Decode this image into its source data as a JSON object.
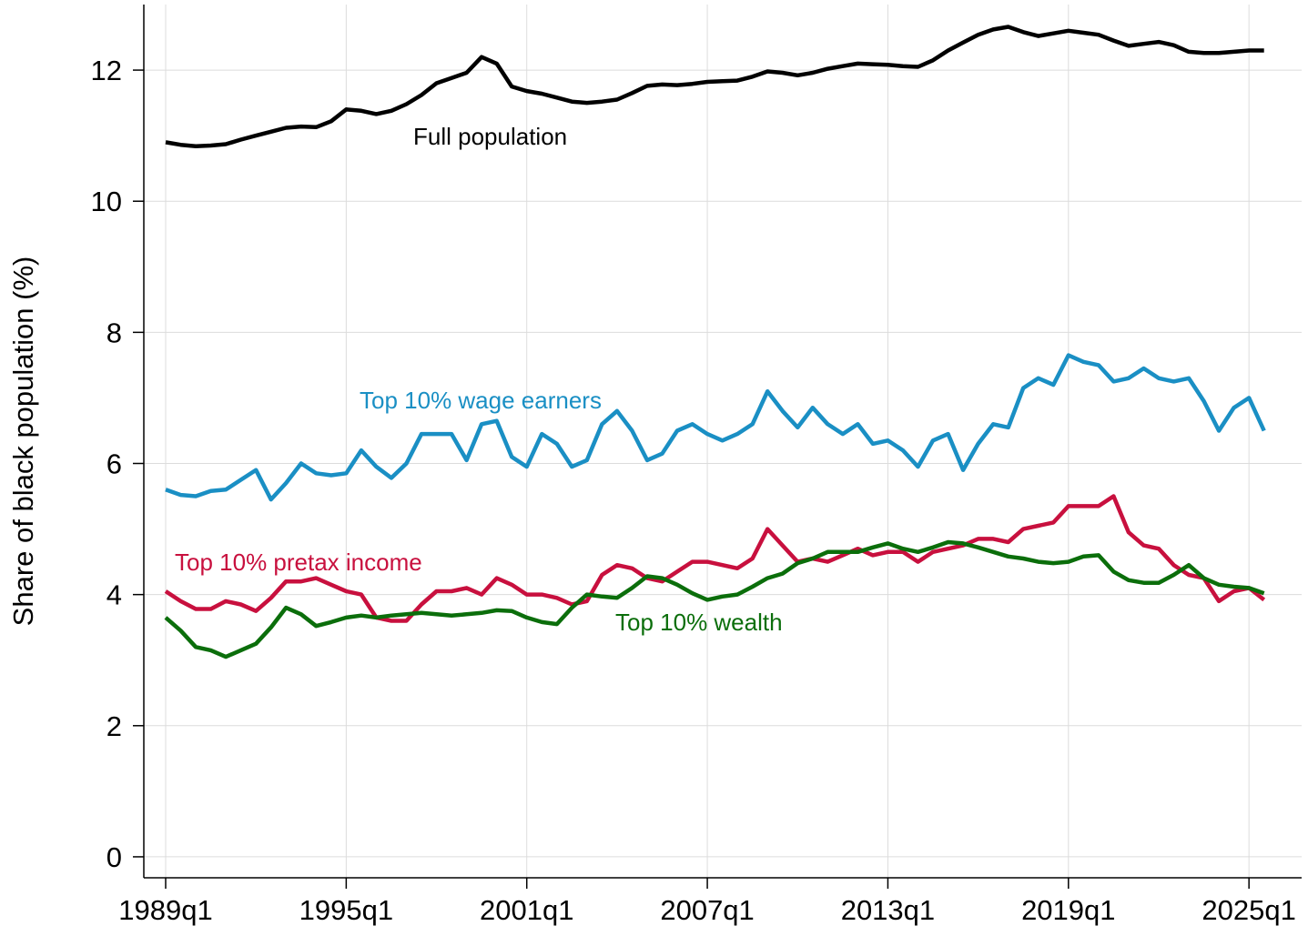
{
  "chart_data": {
    "type": "line",
    "y_label": "Share of black population (%)",
    "x": [
      "1989q1",
      "1989q3",
      "1990q1",
      "1990q3",
      "1991q1",
      "1991q3",
      "1992q1",
      "1992q3",
      "1993q1",
      "1993q3",
      "1994q1",
      "1994q3",
      "1995q1",
      "1995q3",
      "1996q1",
      "1996q3",
      "1997q1",
      "1997q3",
      "1998q1",
      "1998q3",
      "1999q1",
      "1999q3",
      "2000q1",
      "2000q3",
      "2001q1",
      "2001q3",
      "2002q1",
      "2002q3",
      "2003q1",
      "2003q3",
      "2004q1",
      "2004q3",
      "2005q1",
      "2005q3",
      "2006q1",
      "2006q3",
      "2007q1",
      "2007q3",
      "2008q1",
      "2008q3",
      "2009q1",
      "2009q3",
      "2010q1",
      "2010q3",
      "2011q1",
      "2011q3",
      "2012q1",
      "2012q3",
      "2013q1",
      "2013q3",
      "2014q1",
      "2014q3",
      "2015q1",
      "2015q3",
      "2016q1",
      "2016q3",
      "2017q1",
      "2017q3",
      "2018q1",
      "2018q3",
      "2019q1",
      "2019q3",
      "2020q1",
      "2020q3",
      "2021q1",
      "2021q3",
      "2022q1",
      "2022q3",
      "2023q1",
      "2023q3",
      "2024q1",
      "2024q3",
      "2025q1",
      "2025q3"
    ],
    "xticks": [
      "1989q1",
      "1995q1",
      "2001q1",
      "2007q1",
      "2013q1",
      "2019q1",
      "2025q1"
    ],
    "ylim": [
      -0.32,
      13
    ],
    "yticks": [
      0,
      2,
      4,
      6,
      8,
      10,
      12
    ],
    "grid": true,
    "series": [
      {
        "name": "Full population",
        "color": "#000000",
        "values": [
          10.9,
          10.86,
          10.84,
          10.85,
          10.87,
          10.94,
          11.0,
          11.06,
          11.12,
          11.14,
          11.13,
          11.22,
          11.4,
          11.38,
          11.33,
          11.38,
          11.48,
          11.62,
          11.8,
          11.88,
          11.96,
          12.2,
          12.1,
          11.75,
          11.68,
          11.64,
          11.58,
          11.52,
          11.5,
          11.52,
          11.55,
          11.65,
          11.76,
          11.78,
          11.77,
          11.79,
          11.82,
          11.83,
          11.84,
          11.9,
          11.98,
          11.96,
          11.92,
          11.96,
          12.02,
          12.06,
          12.1,
          12.09,
          12.08,
          12.06,
          12.05,
          12.15,
          12.3,
          12.42,
          12.54,
          12.62,
          12.66,
          12.58,
          12.52,
          12.56,
          12.6,
          12.57,
          12.54,
          12.45,
          12.37,
          12.4,
          12.43,
          12.38,
          12.28,
          12.26,
          12.26,
          12.28,
          12.3,
          12.3
        ]
      },
      {
        "name": "Top 10% wage earners",
        "color": "#1a8fc4",
        "values": [
          5.6,
          5.52,
          5.5,
          5.58,
          5.6,
          5.75,
          5.9,
          5.45,
          5.7,
          6.0,
          5.85,
          5.82,
          5.85,
          6.2,
          5.95,
          5.78,
          6.0,
          6.45,
          6.45,
          6.45,
          6.05,
          6.6,
          6.65,
          6.1,
          5.95,
          6.45,
          6.3,
          5.95,
          6.05,
          6.6,
          6.8,
          6.5,
          6.05,
          6.15,
          6.5,
          6.6,
          6.45,
          6.35,
          6.45,
          6.6,
          7.1,
          6.8,
          6.55,
          6.85,
          6.6,
          6.45,
          6.6,
          6.3,
          6.35,
          6.2,
          5.95,
          6.35,
          6.45,
          5.9,
          6.3,
          6.6,
          6.55,
          7.15,
          7.3,
          7.2,
          7.65,
          7.55,
          7.5,
          7.25,
          7.3,
          7.45,
          7.3,
          7.25,
          7.3,
          6.95,
          6.5,
          6.85,
          7.0,
          6.5
        ]
      },
      {
        "name": "Top 10% pretax income",
        "color": "#c8103e",
        "values": [
          4.05,
          3.9,
          3.78,
          3.78,
          3.9,
          3.85,
          3.75,
          3.95,
          4.2,
          4.2,
          4.25,
          4.15,
          4.05,
          4.0,
          3.65,
          3.6,
          3.6,
          3.85,
          4.05,
          4.05,
          4.1,
          4.0,
          4.25,
          4.15,
          4.0,
          4.0,
          3.95,
          3.85,
          3.9,
          4.3,
          4.45,
          4.4,
          4.25,
          4.2,
          4.35,
          4.5,
          4.5,
          4.45,
          4.4,
          4.55,
          5.0,
          4.75,
          4.5,
          4.55,
          4.5,
          4.6,
          4.7,
          4.6,
          4.65,
          4.65,
          4.5,
          4.65,
          4.7,
          4.75,
          4.85,
          4.85,
          4.8,
          5.0,
          5.05,
          5.1,
          5.35,
          5.35,
          5.35,
          5.5,
          4.95,
          4.75,
          4.7,
          4.45,
          4.3,
          4.25,
          3.9,
          4.05,
          4.1,
          3.92
        ]
      },
      {
        "name": "Top 10% wealth",
        "color": "#0b6e0b",
        "values": [
          3.65,
          3.45,
          3.2,
          3.15,
          3.05,
          3.15,
          3.25,
          3.5,
          3.8,
          3.7,
          3.52,
          3.58,
          3.65,
          3.68,
          3.65,
          3.68,
          3.7,
          3.72,
          3.7,
          3.68,
          3.7,
          3.72,
          3.76,
          3.75,
          3.65,
          3.58,
          3.55,
          3.8,
          4.0,
          3.97,
          3.95,
          4.1,
          4.28,
          4.25,
          4.15,
          4.02,
          3.92,
          3.97,
          4.0,
          4.12,
          4.25,
          4.32,
          4.48,
          4.55,
          4.65,
          4.65,
          4.65,
          4.72,
          4.78,
          4.7,
          4.65,
          4.72,
          4.8,
          4.78,
          4.72,
          4.65,
          4.58,
          4.55,
          4.5,
          4.48,
          4.5,
          4.58,
          4.6,
          4.35,
          4.22,
          4.18,
          4.18,
          4.3,
          4.45,
          4.25,
          4.15,
          4.12,
          4.1,
          4.02
        ]
      }
    ]
  }
}
